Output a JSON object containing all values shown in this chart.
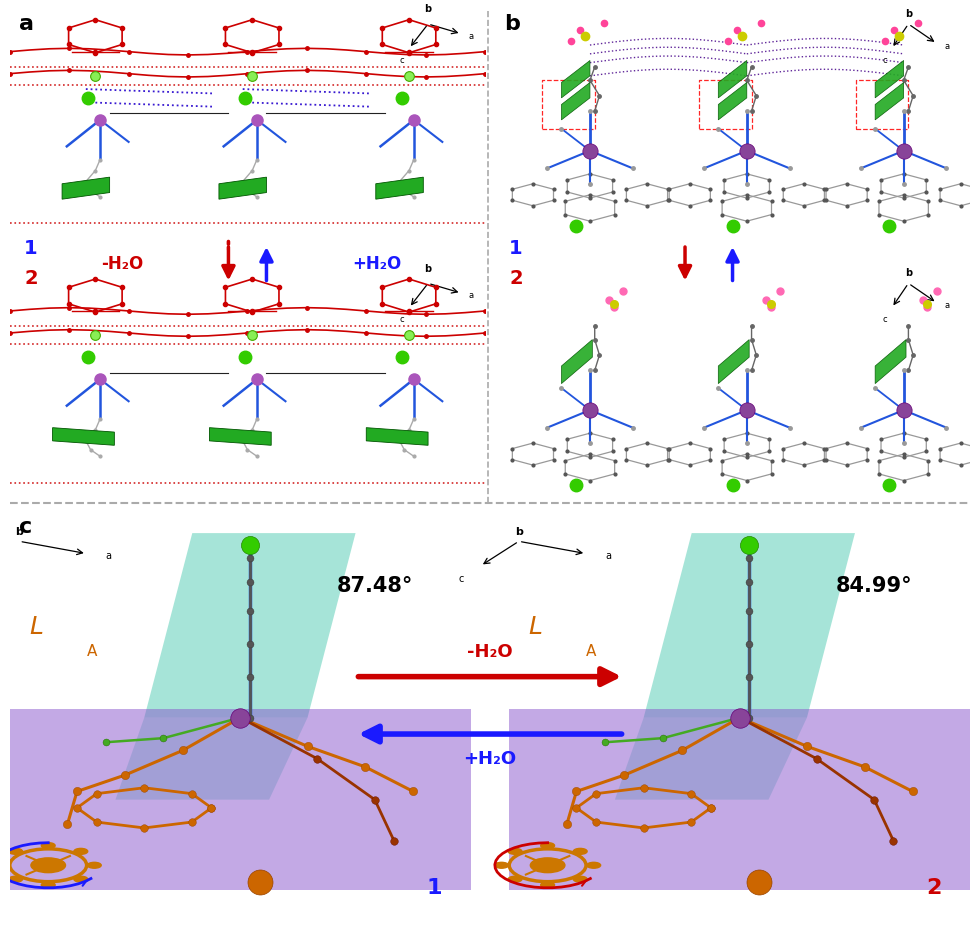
{
  "figure_size": [
    9.8,
    9.32
  ],
  "dpi": 100,
  "background_color": "#ffffff",
  "panel_a_label": "a",
  "panel_b_label": "b",
  "panel_c_label": "c",
  "label1_color": "#1a1aff",
  "label2_color": "#cc0000",
  "minus_h2o_text": "-H₂O",
  "plus_h2o_text": "+H₂O",
  "angle1_text": "87.48°",
  "angle2_text": "84.99°",
  "dashed_separator_color": "#aaaaaa",
  "teal_color": "#5ecfb8",
  "purple_color": "#8855cc",
  "orange_color": "#cc6600",
  "green_color": "#33cc00",
  "purple_mn_color": "#884499",
  "red_color": "#cc0000",
  "blue_color": "#1a1aff",
  "gray_color": "#666666",
  "dark_red_color": "#882200"
}
